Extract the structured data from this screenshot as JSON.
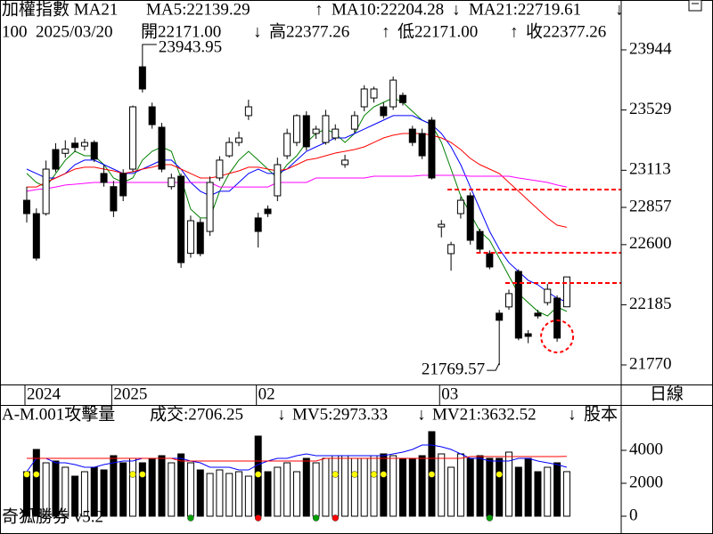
{
  "chart_data": [
    {
      "type": "candlestick",
      "header": [
        {
          "text": "加權指數 MA21",
          "color": "#000000"
        },
        {
          "text": "MA5:22139.29",
          "color": "#008000"
        },
        {
          "text": "↑",
          "color": "#008000"
        },
        {
          "text": "MA10:22204.28",
          "color": "#0000ff"
        },
        {
          "text": "↓",
          "color": "#0000ff"
        },
        {
          "text": "MA21:22719.61",
          "color": "#ff0000"
        },
        {
          "text": "↓",
          "color": "#ff0000"
        }
      ],
      "subheader": [
        "100",
        "2025/03/20",
        "開22171.00",
        "↓",
        "高22377.26",
        "↑",
        "低22171.00",
        "↑",
        "收22377.26"
      ],
      "categories": [
        "2024",
        null,
        null,
        null,
        null,
        null,
        null,
        null,
        null,
        "2025",
        null,
        null,
        null,
        null,
        null,
        null,
        null,
        null,
        null,
        null,
        null,
        null,
        null,
        null,
        "02",
        null,
        null,
        null,
        null,
        null,
        null,
        null,
        null,
        null,
        null,
        null,
        null,
        null,
        null,
        null,
        null,
        null,
        null,
        "03",
        null,
        null,
        null,
        null,
        null,
        null,
        null,
        null,
        null,
        null,
        null,
        null,
        null
      ],
      "open": [
        22906,
        22814,
        22814,
        23256,
        23230,
        23300,
        23280,
        23305,
        23091,
        23000,
        23091,
        23121,
        23827,
        23551,
        23410,
        23000,
        23072,
        22540,
        22753,
        22691,
        23060,
        23213,
        23305,
        23490,
        22784,
        22845,
        22937,
        23213,
        23305,
        23490,
        23367,
        23305,
        23336,
        23152,
        23397,
        23551,
        23612,
        23551,
        23551,
        23630,
        23397,
        23367,
        23459,
        22722,
        22538,
        22814,
        22937,
        22691,
        22538,
        22127,
        22170,
        22415,
        21985,
        22127,
        22200,
        22231,
        22171
      ],
      "high": [
        23000,
        22850,
        23180,
        23300,
        23320,
        23340,
        23330,
        23320,
        23150,
        23040,
        23120,
        23560,
        23943.95,
        23580,
        23440,
        23090,
        23090,
        22800,
        22780,
        23070,
        23210,
        23340,
        23380,
        23600,
        22820,
        22870,
        23200,
        23400,
        23500,
        23520,
        23420,
        23530,
        23430,
        23220,
        23520,
        23700,
        23690,
        23580,
        23760,
        23650,
        23420,
        23400,
        23480,
        22770,
        22620,
        22930,
        22960,
        22710,
        22560,
        22150,
        22290,
        22430,
        22010,
        22150,
        22330,
        22250,
        22377.26
      ],
      "low": [
        22753,
        22490,
        22800,
        23100,
        23200,
        23240,
        23250,
        23170,
        23000,
        22790,
        22900,
        23100,
        23650,
        23400,
        23100,
        22980,
        22440,
        22510,
        22520,
        22660,
        23040,
        23200,
        23280,
        23460,
        22580,
        22790,
        22900,
        23190,
        23280,
        23250,
        23330,
        23290,
        23320,
        23130,
        23370,
        23520,
        23580,
        23470,
        23530,
        23560,
        23280,
        23190,
        23050,
        22650,
        22420,
        22780,
        22600,
        22550,
        22430,
        21769.57,
        22150,
        21940,
        21920,
        22090,
        22180,
        21930,
        22171
      ],
      "close": [
        22814,
        22507,
        23121,
        23121,
        23260,
        23270,
        23305,
        23190,
        23029,
        22833,
        22937,
        23551,
        23674,
        23428,
        23121,
        23060,
        22476,
        22765,
        22538,
        23029,
        23183,
        23305,
        23336,
        23551,
        22691,
        22814,
        23152,
        23367,
        23490,
        23275,
        23397,
        23490,
        23397,
        23183,
        23490,
        23674,
        23674,
        23490,
        23735,
        23580,
        23305,
        23213,
        23060,
        22740,
        22600,
        22906,
        22630,
        22569,
        22446,
        22078,
        22262,
        21955,
        21967,
        22108,
        22292,
        21955,
        22377.26
      ],
      "up_color": "#ffffff",
      "down_color": "#000000",
      "series": [
        {
          "color": "#008000",
          "values": [
            23091,
            23029,
            22998,
            23091,
            23183,
            23244,
            23213,
            23213,
            23152,
            23060,
            23029,
            23060,
            23183,
            23244,
            23275,
            23244,
            23060,
            22845,
            22784,
            22784,
            22968,
            23091,
            23183,
            23244,
            23183,
            23121,
            23060,
            23152,
            23213,
            23305,
            23367,
            23397,
            23367,
            23305,
            23367,
            23490,
            23551,
            23582,
            23612,
            23582,
            23520,
            23459,
            23428,
            23305,
            23121,
            22937,
            22814,
            22691,
            22630,
            22507,
            22384,
            22262,
            22200,
            22139,
            22108,
            22170,
            22139.29
          ]
        },
        {
          "color": "#0000ff",
          "values": [
            23121,
            23091,
            23060,
            23060,
            23091,
            23152,
            23183,
            23183,
            23152,
            23121,
            23091,
            23091,
            23121,
            23152,
            23183,
            23183,
            23121,
            23029,
            22968,
            22937,
            22968,
            22968,
            23029,
            23091,
            23121,
            23091,
            23091,
            23121,
            23183,
            23244,
            23275,
            23305,
            23336,
            23336,
            23367,
            23397,
            23428,
            23459,
            23490,
            23490,
            23490,
            23459,
            23428,
            23367,
            23275,
            23152,
            22998,
            22845,
            22691,
            22569,
            22476,
            22415,
            22354,
            22323,
            22274,
            22231,
            22204.28
          ]
        },
        {
          "color": "#ff0000",
          "values": [
            22998,
            22998,
            23029,
            23060,
            23091,
            23121,
            23134,
            23134,
            23121,
            23109,
            23091,
            23103,
            23121,
            23134,
            23152,
            23152,
            23121,
            23091,
            23060,
            23060,
            23072,
            23091,
            23109,
            23134,
            23134,
            23121,
            23109,
            23121,
            23152,
            23183,
            23195,
            23213,
            23232,
            23244,
            23256,
            23275,
            23305,
            23336,
            23355,
            23367,
            23367,
            23367,
            23355,
            23336,
            23305,
            23256,
            23195,
            23152,
            23121,
            23091,
            23029,
            22968,
            22906,
            22845,
            22784,
            22734,
            22719.61
          ]
        },
        {
          "color": "#ff00ff",
          "values": [
            22968,
            22980,
            22986,
            22998,
            23011,
            23017,
            23023,
            23029,
            23029,
            23029,
            23029,
            23029,
            23029,
            23029,
            23029,
            23029,
            23029,
            23029,
            23029,
            23029,
            22998,
            22998,
            22998,
            22998,
            22998,
            22998,
            23029,
            23029,
            23029,
            23029,
            23060,
            23060,
            23060,
            23060,
            23060,
            23060,
            23072,
            23072,
            23072,
            23072,
            23072,
            23078,
            23078,
            23078,
            23078,
            23078,
            23072,
            23072,
            23072,
            23072,
            23072,
            23060,
            23050,
            23040,
            23029,
            23011,
            22998
          ]
        }
      ],
      "ylim": [
        21635,
        24288
      ],
      "yticks": [
        23944,
        23529,
        23113,
        22857,
        22600,
        22185,
        21770
      ],
      "levels": [
        {
          "value": 22980,
          "start": 44,
          "color": "#ff0000"
        },
        {
          "value": 22544,
          "start": 47,
          "color": "#ff0000"
        },
        {
          "value": 22335,
          "start": 50,
          "color": "#ff0000"
        }
      ],
      "annotations": [
        {
          "value": 23943.95,
          "index": 12
        },
        {
          "value": 21769.57,
          "index": 49
        }
      ]
    },
    {
      "type": "bar",
      "header": [
        {
          "text": "A-M.001攻擊量",
          "color": "#000000"
        },
        {
          "text": "成交:2706.25",
          "color": "#008000"
        },
        {
          "text": "↓",
          "color": "#008000"
        },
        {
          "text": "MV5:2973.33",
          "color": "#0000ff"
        },
        {
          "text": "↓",
          "color": "#0000ff"
        },
        {
          "text": "MV21:3632.52",
          "color": "#ff0000"
        },
        {
          "text": "↓",
          "color": "#ff0000"
        },
        {
          "text": "股本",
          "color": "#ff00ff"
        }
      ],
      "values": [
        2703,
        4054,
        3243,
        3351,
        2973,
        2432,
        2703,
        2973,
        2811,
        3676,
        3243,
        3514,
        3243,
        3514,
        3676,
        3243,
        3784,
        3243,
        2811,
        2595,
        2811,
        2595,
        2703,
        2432,
        4865,
        2703,
        2973,
        3243,
        2703,
        3514,
        3243,
        3514,
        3676,
        3676,
        3514,
        3514,
        3676,
        3784,
        3676,
        3514,
        3514,
        3676,
        5135,
        3784,
        2973,
        3784,
        3514,
        3676,
        3514,
        3514,
        3892,
        2973,
        3514,
        2703,
        2973,
        3243,
        2706.25
      ],
      "series": [
        {
          "color": "#0000ff",
          "values": [
            2703,
            3514,
            3514,
            3243,
            3243,
            3135,
            2973,
            2973,
            3135,
            3243,
            3351,
            3351,
            3514,
            3514,
            3514,
            3514,
            3514,
            3351,
            3243,
            2973,
            2973,
            2973,
            2811,
            2811,
            3135,
            3351,
            3514,
            3514,
            3676,
            3784,
            3676,
            3676,
            3676,
            3676,
            3676,
            3676,
            3676,
            3676,
            3784,
            3892,
            4054,
            4324,
            4324,
            4216,
            4054,
            3784,
            3514,
            3514,
            3351,
            3351,
            3351,
            3514,
            3514,
            3351,
            3243,
            3135,
            2973.33
          ]
        },
        {
          "color": "#ff0000",
          "values": [
            3514,
            3514,
            3514,
            3514,
            3514,
            3514,
            3514,
            3514,
            3514,
            3514,
            3514,
            3514,
            3514,
            3514,
            3514,
            3514,
            3351,
            3351,
            3351,
            3351,
            3351,
            3351,
            3351,
            3351,
            3351,
            3351,
            3351,
            3351,
            3351,
            3351,
            3351,
            3514,
            3514,
            3514,
            3514,
            3514,
            3514,
            3514,
            3514,
            3514,
            3514,
            3514,
            3514,
            3514,
            3514,
            3514,
            3621,
            3621,
            3621,
            3621,
            3621,
            3621,
            3621,
            3621,
            3621,
            3621,
            3632.52
          ]
        }
      ],
      "ylim": [
        -1081,
        6757
      ],
      "yticks": [
        4000,
        2000,
        0
      ],
      "dots": {
        "color": "#ffff00",
        "indices": [
          0,
          1,
          11,
          12,
          24,
          32,
          34,
          36,
          37,
          42,
          49
        ]
      },
      "base_dots": [
        {
          "index": 17,
          "color": "#00a000"
        },
        {
          "index": 24,
          "color": "#ff0000"
        },
        {
          "index": 30,
          "color": "#00a000"
        },
        {
          "index": 32,
          "color": "#ff0000"
        },
        {
          "index": 48,
          "color": "#00a000"
        }
      ]
    }
  ],
  "period": "日線",
  "footer": "奇狐勝券 v5.2"
}
